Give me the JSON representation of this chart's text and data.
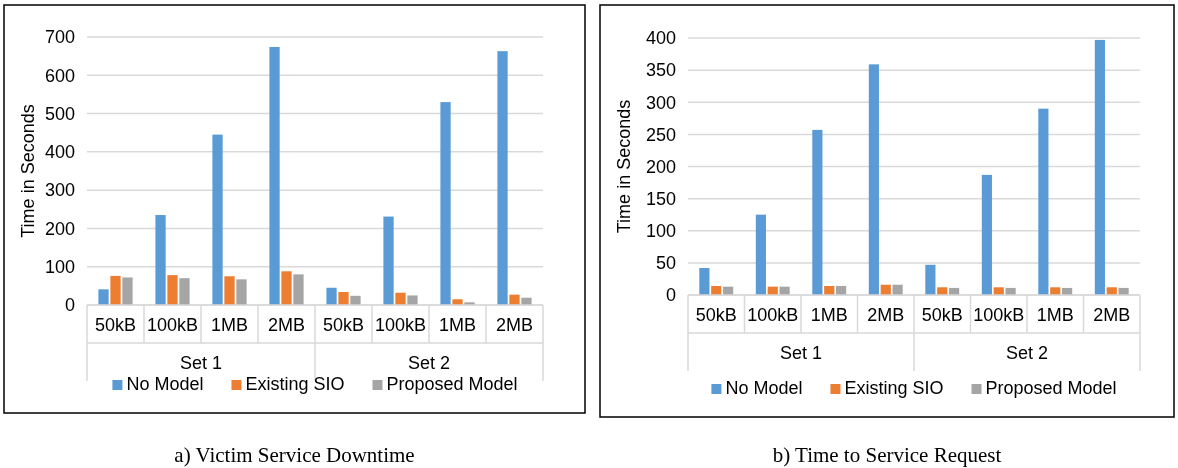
{
  "chart_data": [
    {
      "type": "bar",
      "title": "a) Victim Service Downtime",
      "ylabel": "Time in Seconds",
      "categories": [
        "50kB",
        "100kB",
        "1MB",
        "2MB",
        "50kB",
        "100kB",
        "1MB",
        "2MB"
      ],
      "annotations": [
        "Set 1",
        "Set 2"
      ],
      "series": [
        {
          "name": "No Model",
          "color": "#5b9bd5",
          "values": [
            41,
            235,
            445,
            674,
            45,
            231,
            530,
            663
          ]
        },
        {
          "name": "Existing SIO",
          "color": "#ed7d31",
          "values": [
            76,
            78,
            75,
            88,
            34,
            32,
            15,
            27
          ]
        },
        {
          "name": "Proposed Model",
          "color": "#a5a5a5",
          "values": [
            72,
            70,
            67,
            80,
            24,
            25,
            7,
            19
          ]
        }
      ],
      "ylim": [
        0,
        700
      ],
      "yticks": [
        0,
        100,
        200,
        300,
        400,
        500,
        600,
        700
      ],
      "grid": "y",
      "legend": "bottom"
    },
    {
      "type": "bar",
      "title": "b) Time to Service Request",
      "ylabel": "Time in Seconds",
      "categories": [
        "50kB",
        "100kB",
        "1MB",
        "2MB",
        "50kB",
        "100kB",
        "1MB",
        "2MB"
      ],
      "annotations": [
        "Set 1",
        "Set 2"
      ],
      "series": [
        {
          "name": "No Model",
          "color": "#5b9bd5",
          "values": [
            42,
            125,
            257,
            359,
            47,
            187,
            290,
            397
          ]
        },
        {
          "name": "Existing SIO",
          "color": "#ed7d31",
          "values": [
            14,
            13,
            14,
            16,
            12,
            12,
            12,
            12
          ]
        },
        {
          "name": "Proposed Model",
          "color": "#a5a5a5",
          "values": [
            13,
            13,
            14,
            16,
            11,
            11,
            11,
            11
          ]
        }
      ],
      "ylim": [
        0,
        400
      ],
      "yticks": [
        0,
        50,
        100,
        150,
        200,
        250,
        300,
        350,
        400
      ],
      "grid": "y",
      "legend": "bottom"
    }
  ]
}
